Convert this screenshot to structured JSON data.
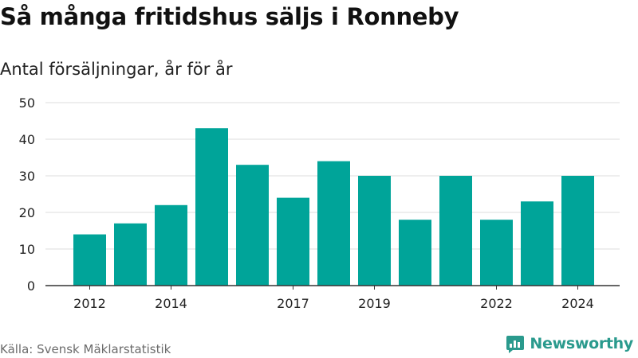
{
  "title": "Så många fritidshus säljs i Ronneby",
  "subtitle": "Antal försäljningar, år för år",
  "source": "Källa: Svensk Mäklarstatistik",
  "brand": {
    "name": "Newsworthy",
    "logo_icon": "bar-chart-logo-icon"
  },
  "colors": {
    "bar": "#00a499",
    "grid": "#dddddd",
    "axis": "#333333",
    "text": "#222222",
    "brand": "#2a9a8d"
  },
  "chart_data": {
    "type": "bar",
    "categories": [
      "2012",
      "2013",
      "2014",
      "2015",
      "2016",
      "2017",
      "2018",
      "2019",
      "2020",
      "2021",
      "2022",
      "2023",
      "2024"
    ],
    "values": [
      14,
      17,
      22,
      43,
      33,
      24,
      34,
      30,
      18,
      30,
      18,
      23,
      30
    ],
    "x_tick_labels": [
      "2012",
      "",
      "2014",
      "",
      "",
      "2017",
      "",
      "2019",
      "",
      "",
      "2022",
      "",
      "2024"
    ],
    "y_ticks": [
      0,
      10,
      20,
      30,
      40,
      50
    ],
    "ylim": [
      0,
      50
    ],
    "grid": true,
    "legend": false
  }
}
